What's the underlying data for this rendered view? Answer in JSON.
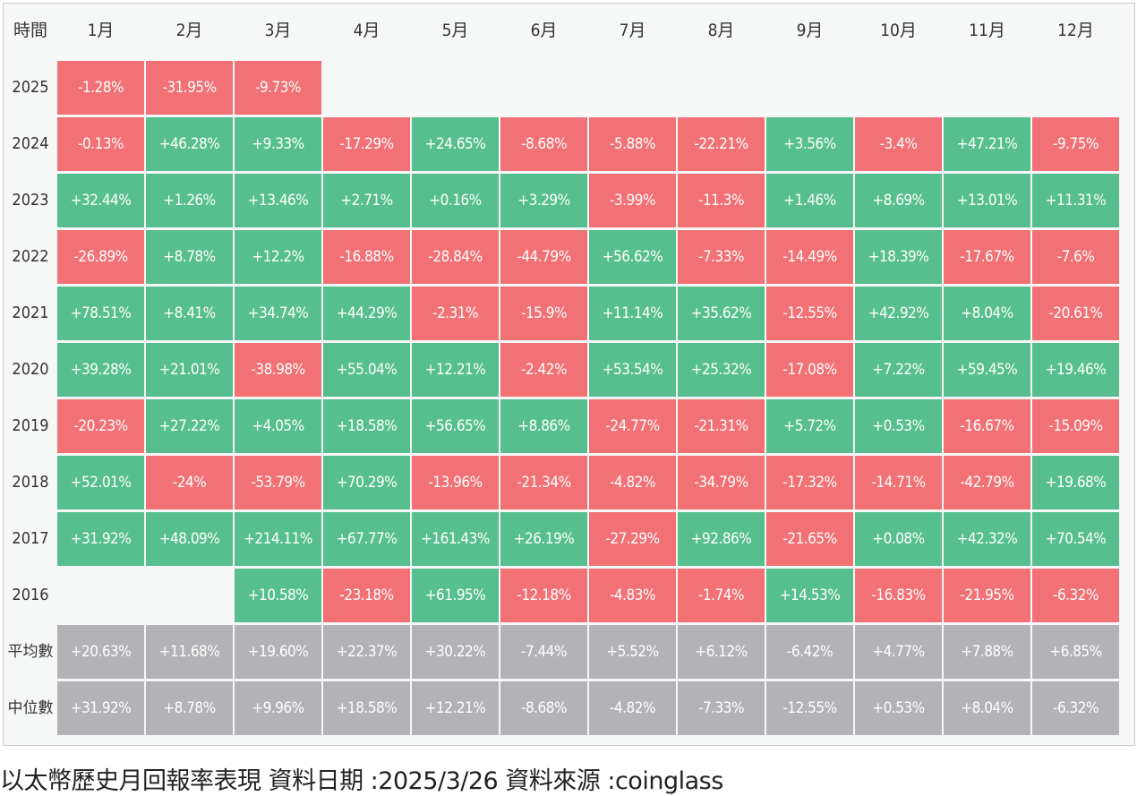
{
  "chart_data": {
    "type": "heatmap",
    "title": "以太幣歷史月回報率表現",
    "corner_label": "時間",
    "columns": [
      "1月",
      "2月",
      "3月",
      "4月",
      "5月",
      "6月",
      "7月",
      "8月",
      "9月",
      "10月",
      "11月",
      "12月"
    ],
    "rows": [
      {
        "label": "2025",
        "values": [
          "-1.28%",
          "-31.95%",
          "-9.73%",
          "",
          "",
          "",
          "",
          "",
          "",
          "",
          "",
          ""
        ]
      },
      {
        "label": "2024",
        "values": [
          "-0.13%",
          "+46.28%",
          "+9.33%",
          "-17.29%",
          "+24.65%",
          "-8.68%",
          "-5.88%",
          "-22.21%",
          "+3.56%",
          "-3.4%",
          "+47.21%",
          "-9.75%"
        ]
      },
      {
        "label": "2023",
        "values": [
          "+32.44%",
          "+1.26%",
          "+13.46%",
          "+2.71%",
          "+0.16%",
          "+3.29%",
          "-3.99%",
          "-11.3%",
          "+1.46%",
          "+8.69%",
          "+13.01%",
          "+11.31%"
        ]
      },
      {
        "label": "2022",
        "values": [
          "-26.89%",
          "+8.78%",
          "+12.2%",
          "-16.88%",
          "-28.84%",
          "-44.79%",
          "+56.62%",
          "-7.33%",
          "-14.49%",
          "+18.39%",
          "-17.67%",
          "-7.6%"
        ]
      },
      {
        "label": "2021",
        "values": [
          "+78.51%",
          "+8.41%",
          "+34.74%",
          "+44.29%",
          "-2.31%",
          "-15.9%",
          "+11.14%",
          "+35.62%",
          "-12.55%",
          "+42.92%",
          "+8.04%",
          "-20.61%"
        ]
      },
      {
        "label": "2020",
        "values": [
          "+39.28%",
          "+21.01%",
          "-38.98%",
          "+55.04%",
          "+12.21%",
          "-2.42%",
          "+53.54%",
          "+25.32%",
          "-17.08%",
          "+7.22%",
          "+59.45%",
          "+19.46%"
        ]
      },
      {
        "label": "2019",
        "values": [
          "-20.23%",
          "+27.22%",
          "+4.05%",
          "+18.58%",
          "+56.65%",
          "+8.86%",
          "-24.77%",
          "-21.31%",
          "+5.72%",
          "+0.53%",
          "-16.67%",
          "-15.09%"
        ]
      },
      {
        "label": "2018",
        "values": [
          "+52.01%",
          "-24%",
          "-53.79%",
          "+70.29%",
          "-13.96%",
          "-21.34%",
          "-4.82%",
          "-34.79%",
          "-17.32%",
          "-14.71%",
          "-42.79%",
          "+19.68%"
        ]
      },
      {
        "label": "2017",
        "values": [
          "+31.92%",
          "+48.09%",
          "+214.11%",
          "+67.77%",
          "+161.43%",
          "+26.19%",
          "-27.29%",
          "+92.86%",
          "-21.65%",
          "+0.08%",
          "+42.32%",
          "+70.54%"
        ]
      },
      {
        "label": "2016",
        "values": [
          "",
          "",
          "+10.58%",
          "-23.18%",
          "+61.95%",
          "-12.18%",
          "-4.83%",
          "-1.74%",
          "+14.53%",
          "-16.83%",
          "-21.95%",
          "-6.32%"
        ]
      }
    ],
    "stats": [
      {
        "label": "平均數",
        "values": [
          "+20.63%",
          "+11.68%",
          "+19.60%",
          "+22.37%",
          "+30.22%",
          "-7.44%",
          "+5.52%",
          "+6.12%",
          "-6.42%",
          "+4.77%",
          "+7.88%",
          "+6.85%"
        ]
      },
      {
        "label": "中位數",
        "values": [
          "+31.92%",
          "+8.78%",
          "+9.96%",
          "+18.58%",
          "+12.21%",
          "-8.68%",
          "-4.82%",
          "-7.33%",
          "-12.55%",
          "+0.53%",
          "+8.04%",
          "-6.32%"
        ]
      }
    ]
  },
  "colors": {
    "positive": "#57bf8f",
    "negative": "#f17174",
    "stat": "#b3b3b7"
  },
  "caption": "以太幣歷史月回報率表現 資料日期 :2025/3/26 資料來源 :coinglass"
}
